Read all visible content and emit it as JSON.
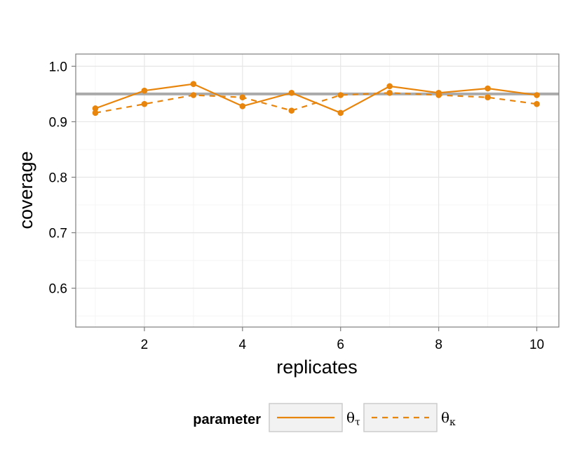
{
  "chart_data": {
    "type": "line",
    "xlabel": "replicates",
    "ylabel": "coverage",
    "x": [
      1,
      2,
      3,
      4,
      5,
      6,
      7,
      8,
      9,
      10
    ],
    "xlim": [
      0.6,
      10.45
    ],
    "ylim": [
      0.53,
      1.022
    ],
    "xticks": [
      2,
      4,
      6,
      8,
      10
    ],
    "yticks": [
      0.6,
      0.7,
      0.8,
      0.9,
      1.0
    ],
    "xtick_labels": [
      "2",
      "4",
      "6",
      "8",
      "10"
    ],
    "ytick_labels": [
      "0.6",
      "0.7",
      "0.8",
      "0.9",
      "1.0"
    ],
    "reference_line": {
      "y": 0.95,
      "color": "#aaaaaa"
    },
    "grid": true,
    "legend": {
      "title": "parameter",
      "position": "bottom",
      "entries": [
        {
          "symbol": "θ",
          "subscript": "τ",
          "linetype": "solid"
        },
        {
          "symbol": "θ",
          "subscript": "κ",
          "linetype": "dashed"
        }
      ]
    },
    "series": [
      {
        "linetype": "solid",
        "color": "#e8850c",
        "values": [
          0.924,
          0.956,
          0.968,
          0.928,
          0.952,
          0.916,
          0.964,
          0.952,
          0.96,
          0.948
        ]
      },
      {
        "linetype": "dashed",
        "color": "#e8850c",
        "values": [
          0.916,
          0.932,
          0.948,
          0.944,
          0.92,
          0.948,
          0.952,
          0.948,
          0.944,
          0.932
        ]
      }
    ]
  }
}
